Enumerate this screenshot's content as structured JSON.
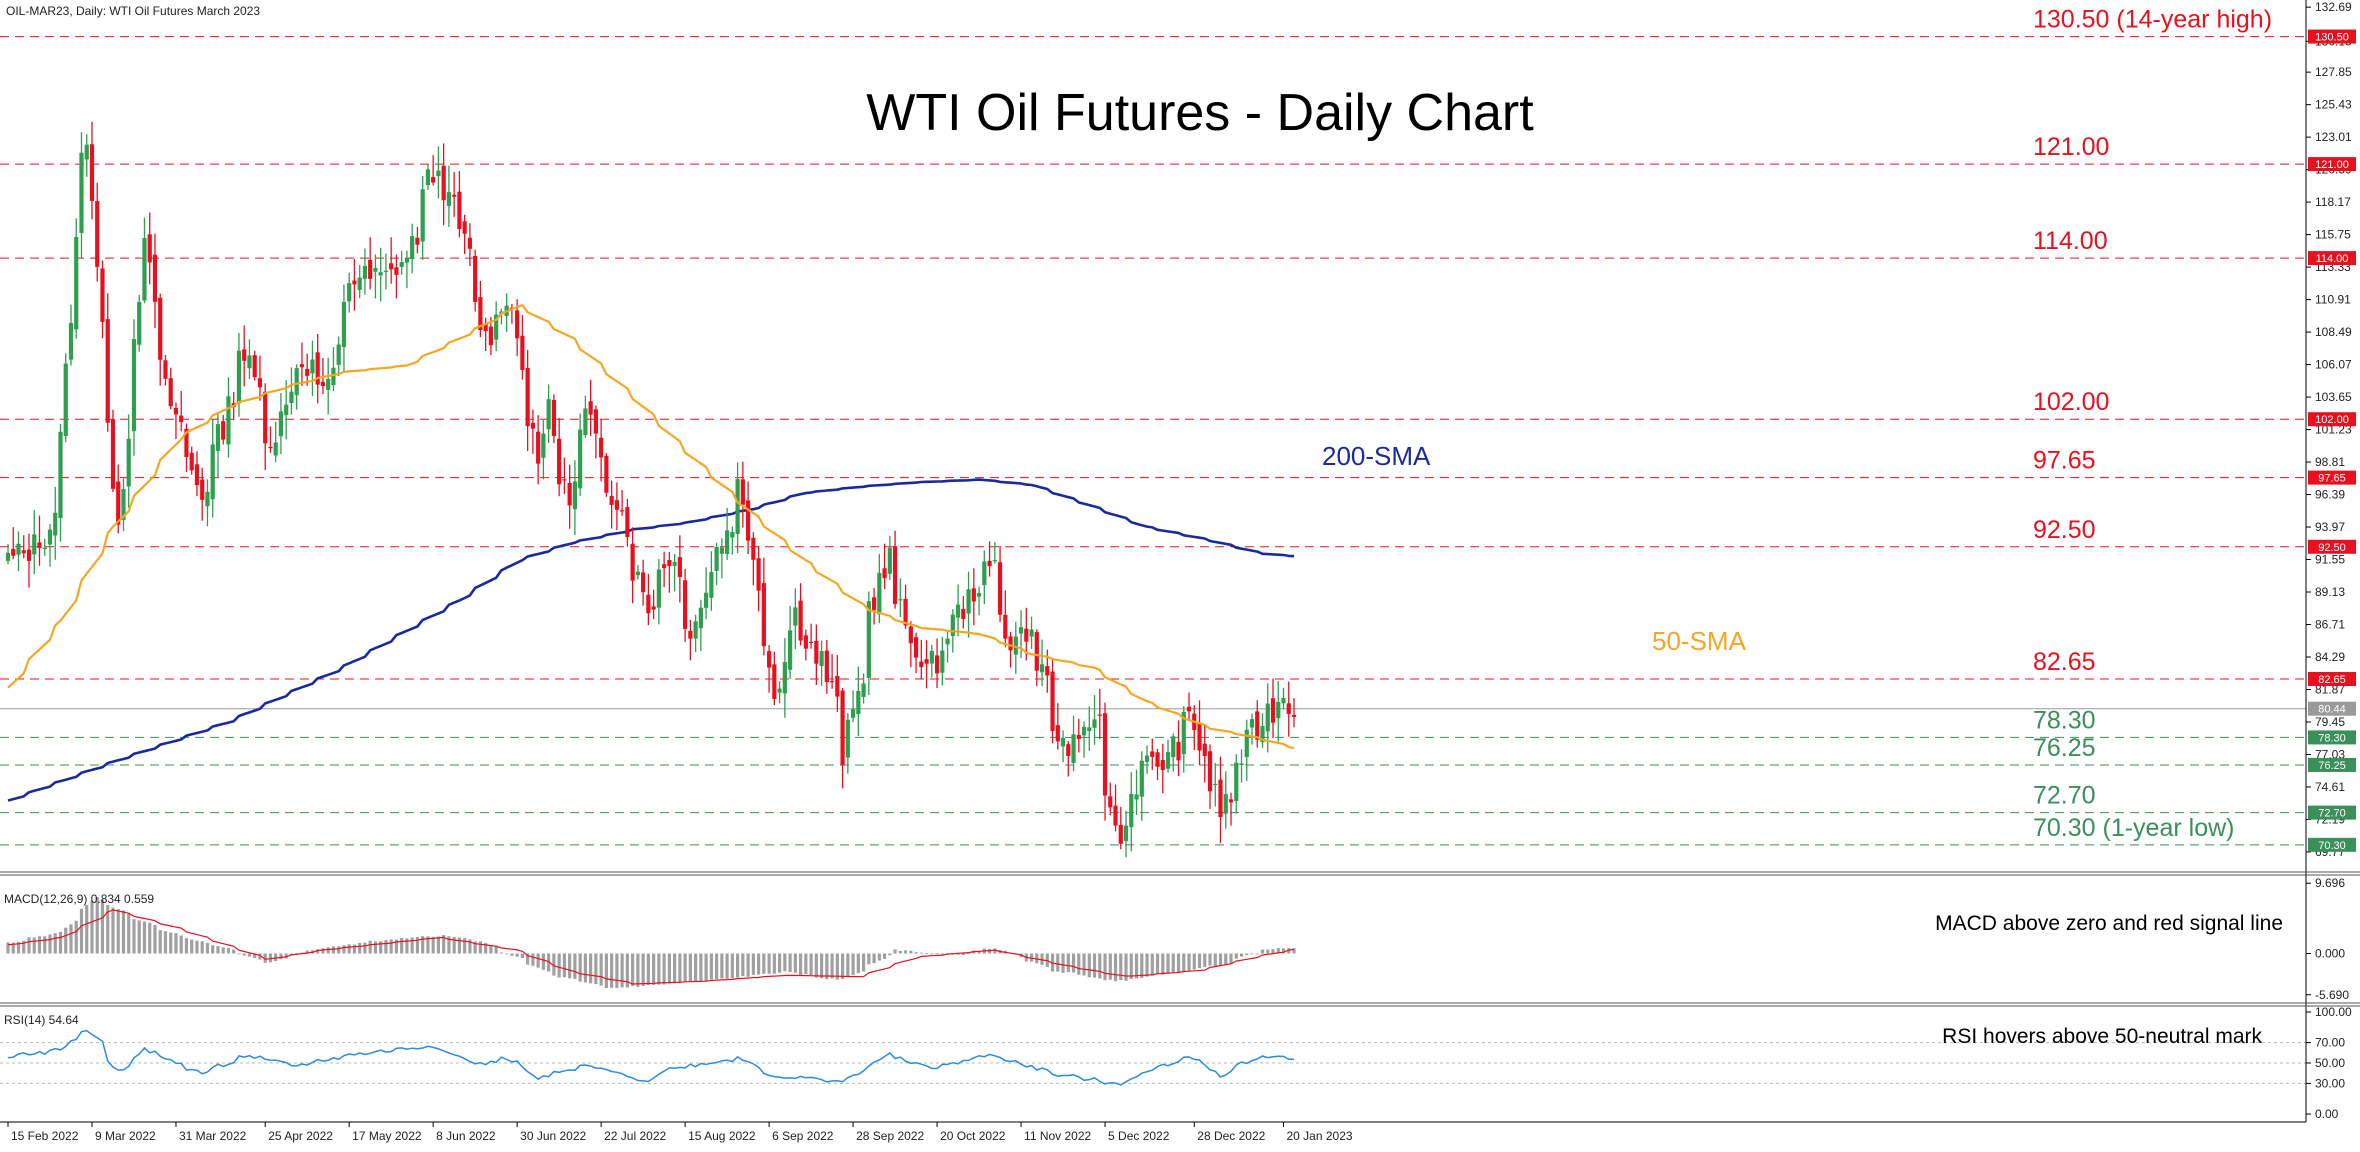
{
  "header": {
    "symbol_line": "OIL-MAR23, Daily:  WTI Oil Futures March 2023"
  },
  "chart_data": {
    "type": "candlestick",
    "title": "WTI Oil Futures - Daily Chart",
    "ylim": [
      68.5,
      133.0
    ],
    "price_ticks": [
      "132.69",
      "130.15",
      "127.85",
      "125.43",
      "123.01",
      "120.59",
      "118.17",
      "115.75",
      "113.33",
      "110.91",
      "108.49",
      "106.07",
      "103.65",
      "101.23",
      "98.81",
      "96.39",
      "93.97",
      "91.55",
      "89.13",
      "86.71",
      "84.29",
      "81.87",
      "79.45",
      "77.03",
      "74.61",
      "72.19",
      "69.77"
    ],
    "x_tick_labels": [
      "15 Feb 2022",
      "9 Mar 2022",
      "31 Mar 2022",
      "25 Apr 2022",
      "17 May 2022",
      "8 Jun 2022",
      "30 Jun 2022",
      "22 Jul 2022",
      "15 Aug 2022",
      "6 Sep 2022",
      "28 Sep 2022",
      "20 Oct 2022",
      "11 Nov 2022",
      "5 Dec 2022",
      "28 Dec 2022",
      "20 Jan 2023"
    ],
    "colors": {
      "bull": "#2e9e4f",
      "bear": "#e8101e",
      "sma50": "#f5a623",
      "sma200": "#1a2a9c",
      "red_level": "#e8101e",
      "green_level": "#3a8f5a",
      "macd_hist": "#a0a0a0",
      "signal": "#e8101e",
      "rsi": "#2a8be0"
    },
    "price_anchors": [
      [
        "2022-02-15",
        91.5
      ],
      [
        "2022-02-22",
        92.5
      ],
      [
        "2022-02-28",
        95.5
      ],
      [
        "2022-03-04",
        115.0
      ],
      [
        "2022-03-08",
        123.5
      ],
      [
        "2022-03-11",
        109.0
      ],
      [
        "2022-03-16",
        95.0
      ],
      [
        "2022-03-23",
        114.5
      ],
      [
        "2022-03-29",
        104.0
      ],
      [
        "2022-04-07",
        96.5
      ],
      [
        "2022-04-12",
        100.5
      ],
      [
        "2022-04-18",
        107.5
      ],
      [
        "2022-04-26",
        100.5
      ],
      [
        "2022-05-04",
        106.5
      ],
      [
        "2022-05-11",
        104.0
      ],
      [
        "2022-05-17",
        112.5
      ],
      [
        "2022-05-26",
        112.5
      ],
      [
        "2022-06-01",
        114.0
      ],
      [
        "2022-06-08",
        120.5
      ],
      [
        "2022-06-14",
        117.5
      ],
      [
        "2022-06-22",
        108.0
      ],
      [
        "2022-06-28",
        111.5
      ],
      [
        "2022-07-06",
        98.5
      ],
      [
        "2022-07-08",
        104.0
      ],
      [
        "2022-07-14",
        95.5
      ],
      [
        "2022-07-19",
        102.0
      ],
      [
        "2022-07-27",
        96.0
      ],
      [
        "2022-08-04",
        88.0
      ],
      [
        "2022-08-10",
        92.0
      ],
      [
        "2022-08-16",
        86.5
      ],
      [
        "2022-08-29",
        97.0
      ],
      [
        "2022-09-07",
        82.0
      ],
      [
        "2022-09-13",
        87.5
      ],
      [
        "2022-09-16",
        85.0
      ],
      [
        "2022-09-20",
        84.0
      ],
      [
        "2022-09-26",
        77.0
      ],
      [
        "2022-09-29",
        81.5
      ],
      [
        "2022-10-03",
        88.0
      ],
      [
        "2022-10-07",
        91.5
      ],
      [
        "2022-10-12",
        86.5
      ],
      [
        "2022-10-18",
        83.0
      ],
      [
        "2022-10-27",
        88.0
      ],
      [
        "2022-11-04",
        91.0
      ],
      [
        "2022-11-09",
        85.5
      ],
      [
        "2022-11-14",
        86.5
      ],
      [
        "2022-11-22",
        78.0
      ],
      [
        "2022-11-28",
        77.0
      ],
      [
        "2022-12-01",
        80.5
      ],
      [
        "2022-12-07",
        71.5
      ],
      [
        "2022-12-09",
        71.5
      ],
      [
        "2022-12-14",
        76.0
      ],
      [
        "2022-12-20",
        76.5
      ],
      [
        "2022-12-27",
        79.5
      ],
      [
        "2023-01-04",
        73.0
      ],
      [
        "2023-01-06",
        73.8
      ],
      [
        "2023-01-12",
        78.5
      ],
      [
        "2023-01-18",
        80.5
      ],
      [
        "2023-01-20",
        81.5
      ],
      [
        "2023-01-24",
        80.6
      ]
    ],
    "sma50_anchors": [
      [
        "2022-02-15",
        82.0
      ],
      [
        "2022-03-01",
        87.0
      ],
      [
        "2022-03-15",
        94.0
      ],
      [
        "2022-04-01",
        100.5
      ],
      [
        "2022-04-15",
        103.0
      ],
      [
        "2022-05-01",
        104.5
      ],
      [
        "2022-05-15",
        105.5
      ],
      [
        "2022-06-01",
        106.0
      ],
      [
        "2022-06-15",
        108.0
      ],
      [
        "2022-07-01",
        110.5
      ],
      [
        "2022-07-15",
        108.0
      ],
      [
        "2022-08-01",
        103.5
      ],
      [
        "2022-08-15",
        99.5
      ],
      [
        "2022-09-01",
        95.0
      ],
      [
        "2022-09-15",
        91.5
      ],
      [
        "2022-10-01",
        88.0
      ],
      [
        "2022-10-15",
        86.5
      ],
      [
        "2022-11-01",
        86.0
      ],
      [
        "2022-11-15",
        84.5
      ],
      [
        "2022-12-01",
        83.5
      ],
      [
        "2022-12-15",
        81.0
      ],
      [
        "2023-01-01",
        79.0
      ],
      [
        "2023-01-15",
        78.2
      ],
      [
        "2023-01-24",
        77.5
      ]
    ],
    "sma200_anchors": [
      [
        "2022-02-15",
        73.6
      ],
      [
        "2022-03-15",
        76.5
      ],
      [
        "2022-04-15",
        79.5
      ],
      [
        "2022-05-15",
        83.5
      ],
      [
        "2022-06-15",
        88.5
      ],
      [
        "2022-07-01",
        91.5
      ],
      [
        "2022-07-15",
        92.8
      ],
      [
        "2022-08-01",
        93.8
      ],
      [
        "2022-08-15",
        94.3
      ],
      [
        "2022-09-01",
        95.3
      ],
      [
        "2022-09-15",
        96.5
      ],
      [
        "2022-10-01",
        97.0
      ],
      [
        "2022-10-15",
        97.3
      ],
      [
        "2022-11-01",
        97.5
      ],
      [
        "2022-11-15",
        97.1
      ],
      [
        "2022-12-01",
        95.5
      ],
      [
        "2022-12-15",
        94.0
      ],
      [
        "2023-01-01",
        93.0
      ],
      [
        "2023-01-15",
        92.0
      ],
      [
        "2023-01-24",
        91.8
      ]
    ],
    "levels": [
      {
        "price": 130.5,
        "kind": "red",
        "label": "130.50 (14-year high)",
        "axis": "130.50"
      },
      {
        "price": 121.0,
        "kind": "red",
        "label": "121.00",
        "axis": "121.00"
      },
      {
        "price": 114.0,
        "kind": "red",
        "label": "114.00",
        "axis": "114.00"
      },
      {
        "price": 102.0,
        "kind": "red",
        "label": "102.00",
        "axis": "102.00"
      },
      {
        "price": 97.65,
        "kind": "red",
        "label": "97.65",
        "axis": "97.65"
      },
      {
        "price": 92.5,
        "kind": "red",
        "label": "92.50",
        "axis": "92.50"
      },
      {
        "price": 82.65,
        "kind": "red",
        "label": "82.65",
        "axis": "82.65"
      },
      {
        "price": 78.3,
        "kind": "green",
        "label": "78.30",
        "axis": "78.30"
      },
      {
        "price": 76.25,
        "kind": "green",
        "label": "76.25",
        "axis": "76.25"
      },
      {
        "price": 72.7,
        "kind": "green",
        "label": "72.70",
        "axis": "72.70"
      },
      {
        "price": 70.3,
        "kind": "green",
        "label": "70.30 (1-year low)",
        "axis": "70.30"
      }
    ],
    "current_price": {
      "value": 80.44,
      "label": "80.44"
    },
    "annotations": {
      "sma200": "200-SMA",
      "sma50": "50-SMA"
    },
    "macd": {
      "header": "MACD(12,26,9) 0.834 0.559",
      "note": "MACD above zero and red signal line",
      "ticks": [
        "9.696",
        "0.000",
        "-5.690"
      ],
      "ylim": [
        -6.0,
        10.0
      ],
      "hist_anchors": [
        [
          "2022-02-15",
          1.5
        ],
        [
          "2022-03-01",
          3.0
        ],
        [
          "2022-03-10",
          7.8
        ],
        [
          "2022-03-20",
          5.0
        ],
        [
          "2022-04-01",
          2.5
        ],
        [
          "2022-04-15",
          0.5
        ],
        [
          "2022-04-25",
          -1.3
        ],
        [
          "2022-05-05",
          0.3
        ],
        [
          "2022-05-20",
          1.5
        ],
        [
          "2022-06-10",
          2.5
        ],
        [
          "2022-06-20",
          1.8
        ],
        [
          "2022-06-30",
          -0.5
        ],
        [
          "2022-07-10",
          -3.0
        ],
        [
          "2022-07-25",
          -4.8
        ],
        [
          "2022-08-10",
          -4.2
        ],
        [
          "2022-08-25",
          -3.5
        ],
        [
          "2022-09-10",
          -2.5
        ],
        [
          "2022-09-25",
          -3.8
        ],
        [
          "2022-10-10",
          0.5
        ],
        [
          "2022-10-25",
          -0.3
        ],
        [
          "2022-11-05",
          0.9
        ],
        [
          "2022-11-20",
          -2.3
        ],
        [
          "2022-12-07",
          -3.8
        ],
        [
          "2022-12-20",
          -2.8
        ],
        [
          "2023-01-05",
          -1.5
        ],
        [
          "2023-01-15",
          0.5
        ],
        [
          "2023-01-24",
          0.83
        ]
      ],
      "signal_anchors": [
        [
          "2022-02-15",
          1.2
        ],
        [
          "2022-03-01",
          2.2
        ],
        [
          "2022-03-15",
          6.0
        ],
        [
          "2022-04-01",
          3.5
        ],
        [
          "2022-04-15",
          1.0
        ],
        [
          "2022-04-25",
          -0.8
        ],
        [
          "2022-05-10",
          0.5
        ],
        [
          "2022-06-10",
          2.2
        ],
        [
          "2022-06-30",
          0.5
        ],
        [
          "2022-07-15",
          -2.5
        ],
        [
          "2022-08-01",
          -4.2
        ],
        [
          "2022-08-20",
          -3.8
        ],
        [
          "2022-09-10",
          -3.0
        ],
        [
          "2022-09-30",
          -3.2
        ],
        [
          "2022-10-15",
          -0.5
        ],
        [
          "2022-11-05",
          0.5
        ],
        [
          "2022-11-25",
          -1.8
        ],
        [
          "2022-12-10",
          -3.2
        ],
        [
          "2022-12-30",
          -2.3
        ],
        [
          "2023-01-15",
          -0.3
        ],
        [
          "2023-01-24",
          0.56
        ]
      ]
    },
    "rsi": {
      "header": "RSI(14) 54.64",
      "note": "RSI hovers above 50-neutral mark",
      "ticks": [
        "100.00",
        "70.00",
        "50.00",
        "30.00",
        "0.00"
      ],
      "ylim": [
        0,
        100
      ],
      "anchors": [
        [
          "2022-02-15",
          57
        ],
        [
          "2022-02-28",
          62
        ],
        [
          "2022-03-08",
          83
        ],
        [
          "2022-03-10",
          75
        ],
        [
          "2022-03-16",
          42
        ],
        [
          "2022-03-23",
          63
        ],
        [
          "2022-04-07",
          40
        ],
        [
          "2022-04-19",
          57
        ],
        [
          "2022-05-02",
          47
        ],
        [
          "2022-05-17",
          58
        ],
        [
          "2022-06-08",
          67
        ],
        [
          "2022-06-20",
          48
        ],
        [
          "2022-06-28",
          55
        ],
        [
          "2022-07-06",
          35
        ],
        [
          "2022-07-19",
          47
        ],
        [
          "2022-08-04",
          33
        ],
        [
          "2022-08-10",
          44
        ],
        [
          "2022-08-29",
          55
        ],
        [
          "2022-09-07",
          37
        ],
        [
          "2022-09-26",
          32
        ],
        [
          "2022-10-07",
          58
        ],
        [
          "2022-10-19",
          45
        ],
        [
          "2022-11-04",
          58
        ],
        [
          "2022-11-22",
          38
        ],
        [
          "2022-12-08",
          30
        ],
        [
          "2022-12-20",
          48
        ],
        [
          "2022-12-27",
          57
        ],
        [
          "2023-01-04",
          38
        ],
        [
          "2023-01-12",
          53
        ],
        [
          "2023-01-20",
          57
        ],
        [
          "2023-01-24",
          54.64
        ]
      ]
    }
  }
}
